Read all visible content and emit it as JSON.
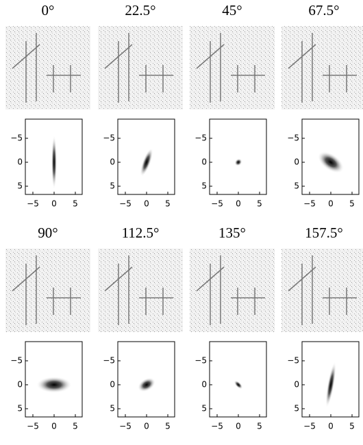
{
  "panels": [
    {
      "title": "0°",
      "yticks": [
        "−5",
        "0",
        "5"
      ],
      "xticks": [
        "−5",
        "0",
        "5"
      ]
    },
    {
      "title": "22.5°",
      "yticks": [
        "−5",
        "0",
        "5"
      ],
      "xticks": [
        "−5",
        "0",
        "5"
      ]
    },
    {
      "title": "45°",
      "yticks": [
        "−5",
        "0",
        "5"
      ],
      "xticks": [
        "−5",
        "0",
        "5"
      ]
    },
    {
      "title": "67.5°",
      "yticks": [
        "−5",
        "0",
        "5"
      ],
      "xticks": [
        "−5",
        "0",
        "5"
      ]
    },
    {
      "title": "90°",
      "yticks": [
        "−5",
        "0",
        "5"
      ],
      "xticks": [
        "−5",
        "0",
        "5"
      ]
    },
    {
      "title": "112.5°",
      "yticks": [
        "−5",
        "0",
        "5"
      ],
      "xticks": [
        "−5",
        "0",
        "5"
      ]
    },
    {
      "title": "135°",
      "yticks": [
        "−5",
        "0",
        "5"
      ],
      "xticks": [
        "−5",
        "0",
        "5"
      ]
    },
    {
      "title": "157.5°",
      "yticks": [
        "−5",
        "0",
        "5"
      ],
      "xticks": [
        "−5",
        "0",
        "5"
      ]
    }
  ]
}
